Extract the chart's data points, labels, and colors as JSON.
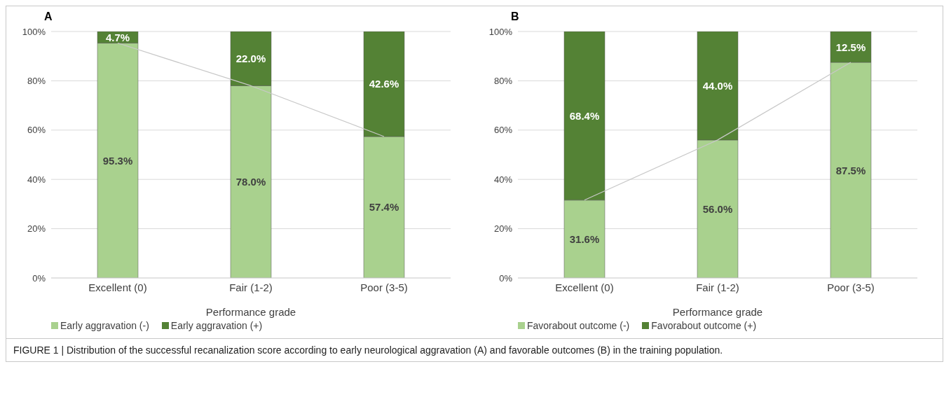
{
  "chart_data": [
    {
      "type": "bar",
      "title": "A",
      "xlabel": "Performance grade",
      "categories": [
        "Excellent (0)",
        "Fair (1-2)",
        "Poor (3-5)"
      ],
      "stacked": true,
      "grid": "y",
      "legend": "bottom",
      "ylim": [
        0,
        100
      ],
      "yticks": [
        {
          "value": 0,
          "label": "0%"
        },
        {
          "value": 20,
          "label": "20%"
        },
        {
          "value": 40,
          "label": "40%"
        },
        {
          "value": 60,
          "label": "60%"
        },
        {
          "value": 80,
          "label": "80%"
        },
        {
          "value": 100,
          "label": "100%"
        }
      ],
      "series": [
        {
          "name": "Early aggravation (-)",
          "color": "#a9d18e",
          "values": [
            95.3,
            78.0,
            57.4
          ],
          "value_labels": [
            "95.3%",
            "78.0%",
            "57.4%"
          ]
        },
        {
          "name": "Early aggravation (+)",
          "color": "#548235",
          "values": [
            4.7,
            22.0,
            42.6
          ],
          "value_labels": [
            "4.7%",
            "22.0%",
            "42.6%"
          ]
        },
        {
          "type": "line",
          "color": "#c8c8c8",
          "values": [
            95.3,
            78.0,
            57.4
          ]
        }
      ]
    },
    {
      "type": "bar",
      "title": "B",
      "xlabel": "Performance grade",
      "categories": [
        "Excellent (0)",
        "Fair (1-2)",
        "Poor (3-5)"
      ],
      "stacked": true,
      "grid": "y",
      "legend": "bottom",
      "ylim": [
        0,
        100
      ],
      "yticks": [
        {
          "value": 0,
          "label": "0%"
        },
        {
          "value": 20,
          "label": "20%"
        },
        {
          "value": 40,
          "label": "40%"
        },
        {
          "value": 60,
          "label": "60%"
        },
        {
          "value": 80,
          "label": "80%"
        },
        {
          "value": 100,
          "label": "100%"
        }
      ],
      "series": [
        {
          "name": "Favorabout outcome (-)",
          "color": "#a9d18e",
          "values": [
            31.6,
            56.0,
            87.5
          ],
          "value_labels": [
            "31.6%",
            "56.0%",
            "87.5%"
          ]
        },
        {
          "name": "Favorabout outcome (+)",
          "color": "#548235",
          "values": [
            68.4,
            44.0,
            12.5
          ],
          "value_labels": [
            "68.4%",
            "44.0%",
            "12.5%"
          ]
        },
        {
          "type": "line",
          "color": "#c8c8c8",
          "values": [
            31.6,
            56.0,
            87.5
          ]
        }
      ],
      "annotations": [
        "FIGURE 1 | Distribution of the successful recanalization score according to early neurological aggravation (A) and favorable outcomes (B) in the training population."
      ]
    }
  ]
}
